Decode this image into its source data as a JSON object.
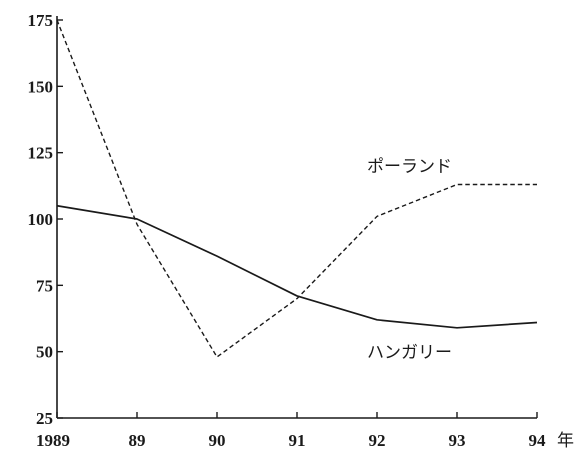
{
  "chart_data": {
    "type": "line",
    "x": [
      "1989",
      "89",
      "90",
      "91",
      "92",
      "93",
      "94"
    ],
    "x_unit": "年",
    "ylim": [
      25,
      175
    ],
    "yticks": [
      25,
      50,
      75,
      100,
      125,
      150,
      175
    ],
    "grid": false,
    "series": [
      {
        "name": "ポーランド",
        "style": "dashed",
        "values": [
          175,
          98,
          48,
          70,
          101,
          113,
          113
        ]
      },
      {
        "name": "ハンガリー",
        "style": "solid",
        "values": [
          105,
          100,
          86,
          71,
          62,
          59,
          61
        ]
      }
    ]
  }
}
